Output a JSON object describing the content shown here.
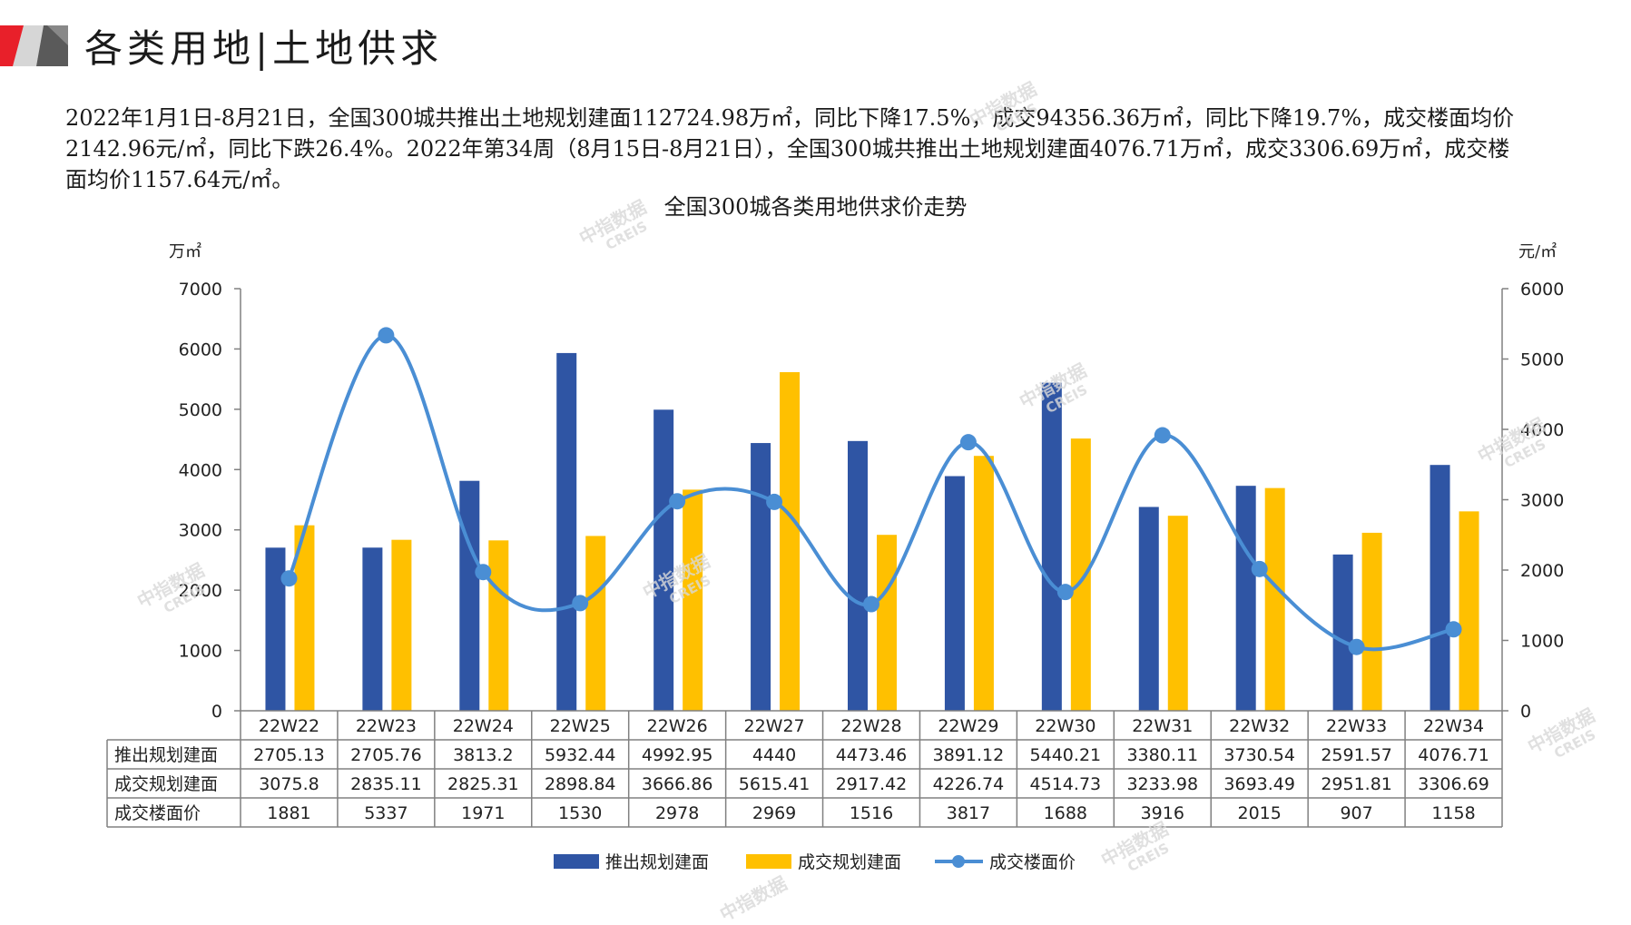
{
  "header": {
    "title": "各类用地|土地供求"
  },
  "summary": {
    "line1": "2022年1月1日-8月21日，全国300城共推出土地规划建面112724.98万㎡，同比下降17.5%，成交94356.36万㎡，同比下降19.7%，成交楼面均价",
    "line2": "2142.96元/㎡，同比下跌26.4%。2022年第34周（8月15日-8月21日），全国300城共推出土地规划建面4076.71万㎡，成交3306.69万㎡，成交楼",
    "line3": "面均价1157.64元/㎡。"
  },
  "watermark": {
    "cn": "中指数据",
    "en": "CREIS"
  },
  "colors": {
    "supply": "#2f55a4",
    "deal": "#ffc000",
    "price": "#4a8ed4",
    "axis": "#808080",
    "table_border": "#808080"
  },
  "chart_data": {
    "type": "bar",
    "title": "全国300城各类用地供求价走势",
    "categories": [
      "22W22",
      "22W23",
      "22W24",
      "22W25",
      "22W26",
      "22W27",
      "22W28",
      "22W29",
      "22W30",
      "22W31",
      "22W32",
      "22W33",
      "22W34"
    ],
    "y_left": {
      "unit": "万㎡",
      "ylim": [
        0,
        7000
      ],
      "ticks": [
        "0",
        "1000",
        "2000",
        "3000",
        "4000",
        "5000",
        "6000",
        "7000"
      ]
    },
    "y_right": {
      "unit": "元/㎡",
      "ylim": [
        0,
        6000
      ],
      "ticks": [
        "0",
        "1000",
        "2000",
        "3000",
        "4000",
        "5000",
        "6000"
      ]
    },
    "series": [
      {
        "name": "推出规划建面",
        "type": "bar",
        "axis": "left",
        "values": [
          2705.13,
          2705.76,
          3813.2,
          5932.44,
          4992.95,
          4440,
          4473.46,
          3891.12,
          5440.21,
          3380.11,
          3730.54,
          2591.57,
          4076.71
        ],
        "labels": [
          "2705.13",
          "2705.76",
          "3813.2",
          "5932.44",
          "4992.95",
          "4440",
          "4473.46",
          "3891.12",
          "5440.21",
          "3380.11",
          "3730.54",
          "2591.57",
          "4076.71"
        ]
      },
      {
        "name": "成交规划建面",
        "type": "bar",
        "axis": "left",
        "values": [
          3075.8,
          2835.11,
          2825.31,
          2898.84,
          3666.86,
          5615.41,
          2917.42,
          4226.74,
          4514.73,
          3233.98,
          3693.49,
          2951.81,
          3306.69
        ],
        "labels": [
          "3075.8",
          "2835.11",
          "2825.31",
          "2898.84",
          "3666.86",
          "5615.41",
          "2917.42",
          "4226.74",
          "4514.73",
          "3233.98",
          "3693.49",
          "2951.81",
          "3306.69"
        ]
      },
      {
        "name": "成交楼面价",
        "type": "line",
        "axis": "right",
        "values": [
          1881,
          5337,
          1971,
          1530,
          2978,
          2969,
          1516,
          3817,
          1688,
          3916,
          2015,
          907,
          1158
        ],
        "labels": [
          "1881",
          "5337",
          "1971",
          "1530",
          "2978",
          "2969",
          "1516",
          "3817",
          "1688",
          "3916",
          "2015",
          "907",
          "1158"
        ]
      }
    ],
    "legend": "bottom",
    "grid": false
  }
}
